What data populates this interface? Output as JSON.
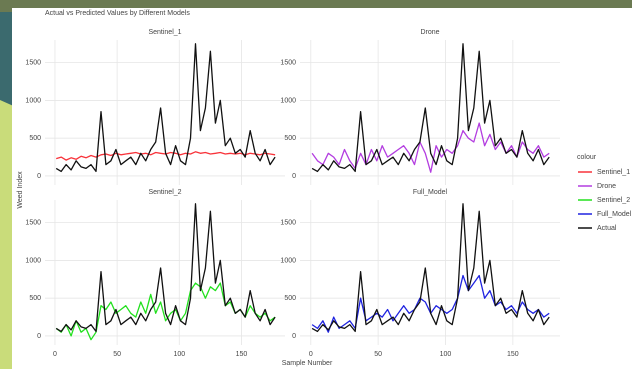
{
  "title": "Actual vs Predicted Values by Different Models",
  "x_label": "Sample Number",
  "y_label": "Weed Index",
  "legend_title": "colour",
  "chart_data": [
    {
      "type": "line",
      "title": "Sentinel_1",
      "x": [
        1,
        5,
        9,
        13,
        17,
        21,
        25,
        29,
        33,
        37,
        41,
        45,
        49,
        53,
        57,
        61,
        65,
        69,
        73,
        77,
        81,
        85,
        89,
        93,
        97,
        101,
        105,
        109,
        113,
        117,
        121,
        125,
        129,
        133,
        137,
        141,
        145,
        149,
        153,
        157,
        161,
        165,
        169,
        173,
        177
      ],
      "xlim": [
        -8,
        185
      ],
      "ylim": [
        -120,
        1800
      ],
      "xticks": [
        0,
        50,
        100,
        150
      ],
      "yticks": [
        0,
        500,
        1000,
        1500
      ],
      "grid": true,
      "series": [
        {
          "name": "Sentinel_1",
          "color": "#f8333a",
          "values": [
            230,
            250,
            210,
            240,
            220,
            260,
            240,
            270,
            250,
            280,
            290,
            270,
            300,
            280,
            290,
            300,
            310,
            290,
            300,
            280,
            310,
            300,
            290,
            310,
            300,
            280,
            300,
            290,
            320,
            300,
            310,
            290,
            300,
            310,
            290,
            300,
            290,
            300,
            280,
            300,
            290,
            280,
            300,
            290,
            280
          ]
        },
        {
          "name": "Actual",
          "color": "#111111",
          "values": [
            100,
            60,
            150,
            80,
            200,
            120,
            100,
            150,
            60,
            850,
            150,
            200,
            350,
            150,
            200,
            250,
            150,
            300,
            200,
            350,
            450,
            900,
            300,
            150,
            400,
            200,
            150,
            500,
            1750,
            600,
            900,
            1650,
            700,
            1000,
            400,
            500,
            300,
            350,
            250,
            600,
            300,
            200,
            350,
            150,
            250
          ]
        }
      ]
    },
    {
      "type": "line",
      "title": "Drone",
      "x": [
        1,
        5,
        9,
        13,
        17,
        21,
        25,
        29,
        33,
        37,
        41,
        45,
        49,
        53,
        57,
        61,
        65,
        69,
        73,
        77,
        81,
        85,
        89,
        93,
        97,
        101,
        105,
        109,
        113,
        117,
        121,
        125,
        129,
        133,
        137,
        141,
        145,
        149,
        153,
        157,
        161,
        165,
        169,
        173,
        177
      ],
      "xlim": [
        -8,
        185
      ],
      "ylim": [
        -120,
        1800
      ],
      "xticks": [
        0,
        50,
        100,
        150
      ],
      "yticks": [
        0,
        500,
        1000,
        1500
      ],
      "grid": true,
      "series": [
        {
          "name": "Drone",
          "color": "#b33de0",
          "values": [
            300,
            200,
            150,
            300,
            250,
            150,
            350,
            200,
            100,
            300,
            150,
            350,
            200,
            400,
            250,
            300,
            350,
            400,
            300,
            150,
            450,
            300,
            50,
            400,
            250,
            350,
            300,
            400,
            600,
            500,
            450,
            700,
            400,
            550,
            350,
            450,
            300,
            400,
            250,
            450,
            350,
            300,
            400,
            250,
            300
          ]
        },
        {
          "name": "Actual",
          "color": "#111111",
          "values": [
            100,
            60,
            150,
            80,
            200,
            120,
            100,
            150,
            60,
            850,
            150,
            200,
            350,
            150,
            200,
            250,
            150,
            300,
            200,
            350,
            450,
            900,
            300,
            150,
            400,
            200,
            150,
            500,
            1750,
            600,
            900,
            1650,
            700,
            1000,
            400,
            500,
            300,
            350,
            250,
            600,
            300,
            200,
            350,
            150,
            250
          ]
        }
      ]
    },
    {
      "type": "line",
      "title": "Sentinel_2",
      "x": [
        1,
        5,
        9,
        13,
        17,
        21,
        25,
        29,
        33,
        37,
        41,
        45,
        49,
        53,
        57,
        61,
        65,
        69,
        73,
        77,
        81,
        85,
        89,
        93,
        97,
        101,
        105,
        109,
        113,
        117,
        121,
        125,
        129,
        133,
        137,
        141,
        145,
        149,
        153,
        157,
        161,
        165,
        169,
        173,
        177
      ],
      "xlim": [
        -8,
        185
      ],
      "ylim": [
        -120,
        1800
      ],
      "xticks": [
        0,
        50,
        100,
        150
      ],
      "yticks": [
        0,
        500,
        1000,
        1500
      ],
      "grid": true,
      "series": [
        {
          "name": "Sentinel_2",
          "color": "#22e01e",
          "values": [
            100,
            50,
            150,
            0,
            200,
            50,
            100,
            -50,
            50,
            400,
            350,
            450,
            300,
            350,
            400,
            300,
            250,
            450,
            300,
            550,
            300,
            450,
            200,
            300,
            350,
            200,
            300,
            600,
            700,
            650,
            500,
            650,
            600,
            700,
            400,
            450,
            300,
            350,
            250,
            400,
            300,
            250,
            300,
            200,
            250
          ]
        },
        {
          "name": "Actual",
          "color": "#111111",
          "values": [
            100,
            60,
            150,
            80,
            200,
            120,
            100,
            150,
            60,
            850,
            150,
            200,
            350,
            150,
            200,
            250,
            150,
            300,
            200,
            350,
            450,
            900,
            300,
            150,
            400,
            200,
            150,
            500,
            1750,
            600,
            900,
            1650,
            700,
            1000,
            400,
            500,
            300,
            350,
            250,
            600,
            300,
            200,
            350,
            150,
            250
          ]
        }
      ]
    },
    {
      "type": "line",
      "title": "Full_Model",
      "x": [
        1,
        5,
        9,
        13,
        17,
        21,
        25,
        29,
        33,
        37,
        41,
        45,
        49,
        53,
        57,
        61,
        65,
        69,
        73,
        77,
        81,
        85,
        89,
        93,
        97,
        101,
        105,
        109,
        113,
        117,
        121,
        125,
        129,
        133,
        137,
        141,
        145,
        149,
        153,
        157,
        161,
        165,
        169,
        173,
        177
      ],
      "xlim": [
        -8,
        185
      ],
      "ylim": [
        -120,
        1800
      ],
      "xticks": [
        0,
        50,
        100,
        150
      ],
      "yticks": [
        0,
        500,
        1000,
        1500
      ],
      "grid": true,
      "series": [
        {
          "name": "Full_Model",
          "color": "#1f23e0",
          "values": [
            150,
            100,
            200,
            50,
            250,
            100,
            150,
            200,
            100,
            500,
            200,
            250,
            300,
            250,
            350,
            200,
            300,
            400,
            300,
            350,
            500,
            450,
            300,
            400,
            350,
            300,
            350,
            500,
            800,
            600,
            700,
            800,
            500,
            600,
            400,
            450,
            350,
            400,
            300,
            450,
            350,
            300,
            350,
            250,
            300
          ]
        },
        {
          "name": "Actual",
          "color": "#111111",
          "values": [
            100,
            60,
            150,
            80,
            200,
            120,
            100,
            150,
            60,
            850,
            150,
            200,
            350,
            150,
            200,
            250,
            150,
            300,
            200,
            350,
            450,
            900,
            300,
            150,
            400,
            200,
            150,
            500,
            1750,
            600,
            900,
            1650,
            700,
            1000,
            400,
            500,
            300,
            350,
            250,
            600,
            300,
            200,
            350,
            150,
            250
          ]
        }
      ]
    }
  ]
}
